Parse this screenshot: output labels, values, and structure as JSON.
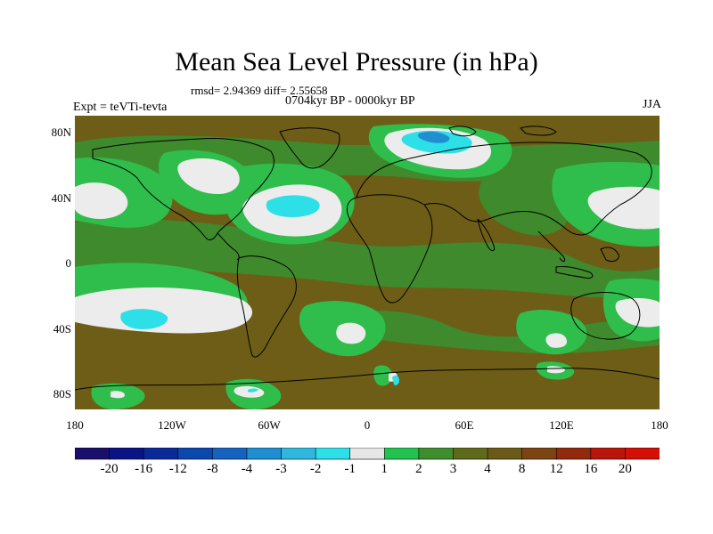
{
  "title": "Mean Sea Level Pressure (in hPa)",
  "stats": "rmsd= 2.94369 diff= 2.55658",
  "period": "0704kyr BP - 0000kyr BP",
  "experiment": "Expt = teVTi-tevta",
  "season": "JJA",
  "lat_labels": [
    "80N",
    "40N",
    "0",
    "40S",
    "80S"
  ],
  "lon_labels": [
    "180",
    "120W",
    "60W",
    "0",
    "60E",
    "120E",
    "180"
  ],
  "colorbar": {
    "labels": [
      "-20",
      "-16",
      "-12",
      "-8",
      "-4",
      "-3",
      "-2",
      "-1",
      "1",
      "2",
      "3",
      "4",
      "8",
      "12",
      "16",
      "20"
    ],
    "colors": [
      "#1a0f6b",
      "#0a1485",
      "#0b2a9a",
      "#0b47ad",
      "#1662bf",
      "#1f8fd0",
      "#2fb7dd",
      "#2ddfe6",
      "#e6e6e6",
      "#23c24f",
      "#3f8e2d",
      "#5f6a1c",
      "#6b5a17",
      "#7b4412",
      "#93290c",
      "#b8160a",
      "#d40f06"
    ]
  },
  "field_colors": {
    "background": "#6d5d16",
    "positive_small": "#2fbe4c",
    "positive_medium": "#3f8a2c",
    "strong_negative": "#2ddfe6",
    "weak_negative": "#ececec",
    "coastline": "#000000"
  }
}
